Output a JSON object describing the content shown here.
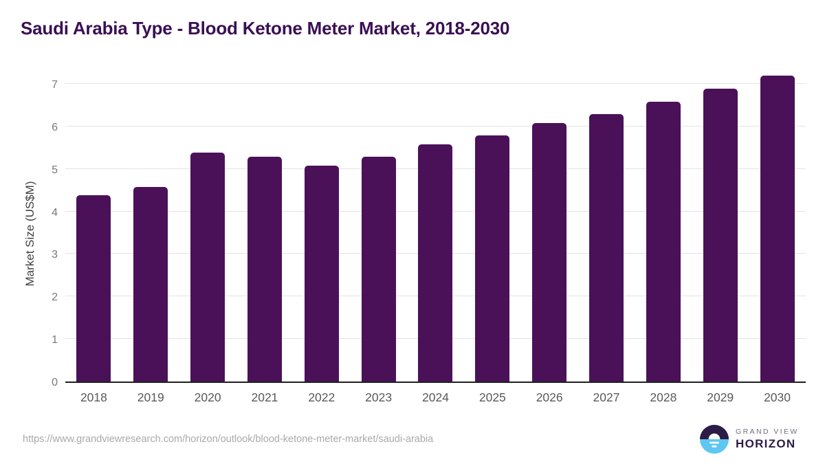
{
  "page": {
    "title": "Saudi Arabia Type - Blood Ketone Meter Market, 2018-2030"
  },
  "chart_data": {
    "type": "bar",
    "title": "Saudi Arabia Type - Blood Ketone Meter Market, 2018-2030",
    "categories": [
      "2018",
      "2019",
      "2020",
      "2021",
      "2022",
      "2023",
      "2024",
      "2025",
      "2026",
      "2027",
      "2028",
      "2029",
      "2030"
    ],
    "values": [
      4.38,
      4.57,
      5.39,
      5.29,
      5.08,
      5.29,
      5.58,
      5.79,
      6.08,
      6.29,
      6.58,
      6.88,
      7.19
    ],
    "xlabel": "",
    "ylabel": "Market Size (US$M)",
    "yticks": [
      0,
      1,
      2,
      3,
      4,
      5,
      6,
      7
    ],
    "ylim": [
      0,
      7
    ],
    "grid": "horizontal-gridlines-on",
    "legend": "none",
    "bar_color": "#4a1159"
  },
  "colors": {
    "title": "#3a1053",
    "bar": "#4a1159",
    "gridline": "#e3e3e5",
    "axis_line": "#1f1f1f",
    "tick_label": "#77787a",
    "x_label": "#58595b",
    "url_text": "#a9a9ab",
    "logo_dark": "#2d1c47",
    "logo_blue": "#5ec7f1"
  },
  "footer": {
    "source_url": "https://www.grandviewresearch.com/horizon/outlook/blood-ketone-meter-market/saudi-arabia",
    "logo": {
      "top_text": "GRAND VIEW",
      "bottom_text": "HORIZON",
      "mark": "horizon-sun-circle-icon"
    }
  }
}
